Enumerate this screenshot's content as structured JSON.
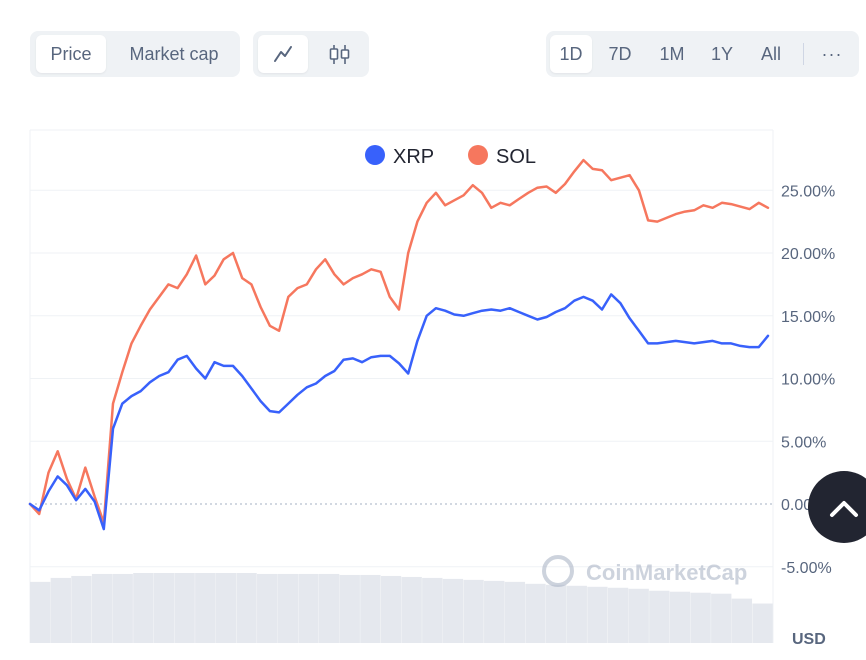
{
  "toolbar": {
    "metric_tabs": [
      {
        "label": "Price",
        "active": true
      },
      {
        "label": "Market cap",
        "active": false
      }
    ],
    "chart_type_icons": [
      {
        "icon": "line-chart-icon",
        "active": true
      },
      {
        "icon": "candlestick-icon",
        "active": false
      }
    ],
    "ranges": [
      {
        "label": "1D",
        "active": true
      },
      {
        "label": "7D",
        "active": false
      },
      {
        "label": "1M",
        "active": false
      },
      {
        "label": "1Y",
        "active": false
      },
      {
        "label": "All",
        "active": false
      }
    ],
    "more_label": "···"
  },
  "watermark": "CoinMarketCap",
  "currency_label": "USD",
  "colors": {
    "xrp": "#3861fb",
    "sol": "#f6775e",
    "volume": "#e5e8ee",
    "grid": "#eff2f5",
    "zero_line": "#a6b0c3",
    "axis_text": "#58667e",
    "scroll_button": "#222531"
  },
  "chart_data": {
    "type": "line",
    "title": "",
    "xlabel": "",
    "ylabel": "",
    "ylim": [
      -5,
      30
    ],
    "yticks": [
      -5,
      0,
      5,
      10,
      15,
      20,
      25
    ],
    "ytick_labels": [
      "-5.00%",
      "0.00%",
      "5.00%",
      "10.00%",
      "15.00%",
      "20.00%",
      "25.00%"
    ],
    "x": [
      0,
      1,
      2,
      3,
      4,
      5,
      6,
      7,
      8,
      9,
      10,
      11,
      12,
      13,
      14,
      15,
      16,
      17,
      18,
      19,
      20,
      21,
      22,
      23,
      24,
      25,
      26,
      27,
      28,
      29,
      30,
      31,
      32,
      33,
      34,
      35,
      36,
      37,
      38,
      39,
      40,
      41,
      42,
      43,
      44,
      45,
      46,
      47,
      48,
      49,
      50,
      51,
      52,
      53,
      54,
      55,
      56,
      57,
      58,
      59,
      60,
      61,
      62,
      63,
      64,
      65,
      66,
      67,
      68,
      69,
      70,
      71,
      72,
      73,
      74,
      75,
      76,
      77,
      78,
      79,
      80
    ],
    "x_unit": "time step (1D, unlabeled)",
    "legend": {
      "position": "top-center"
    },
    "series": [
      {
        "name": "XRP",
        "values": [
          0,
          -0.5,
          1,
          2.2,
          1.5,
          0.3,
          1.2,
          0.2,
          -2,
          6,
          8,
          8.6,
          9,
          9.7,
          10.2,
          10.5,
          11.5,
          11.8,
          10.8,
          10,
          11.3,
          11,
          11,
          10.2,
          9.2,
          8.2,
          7.4,
          7.3,
          8,
          8.7,
          9.3,
          9.6,
          10.2,
          10.6,
          11.5,
          11.6,
          11.3,
          11.7,
          11.8,
          11.8,
          11.2,
          10.4,
          13,
          15,
          15.6,
          15.4,
          15.1,
          15,
          15.2,
          15.4,
          15.5,
          15.4,
          15.6,
          15.3,
          15,
          14.7,
          14.9,
          15.3,
          15.6,
          16.2,
          16.5,
          16.2,
          15.5,
          16.7,
          16,
          14.8,
          13.8,
          12.8,
          12.8,
          12.9,
          13,
          12.9,
          12.8,
          12.9,
          13,
          12.8,
          12.8,
          12.6,
          12.5,
          12.5,
          13.4
        ]
      },
      {
        "name": "SOL",
        "values": [
          0,
          -0.8,
          2.5,
          4.2,
          2,
          0.4,
          2.9,
          0.6,
          -1.5,
          8,
          10.5,
          12.8,
          14.2,
          15.5,
          16.5,
          17.5,
          17.2,
          18.3,
          19.8,
          17.5,
          18.2,
          19.5,
          20,
          18,
          17.5,
          15.7,
          14.2,
          13.8,
          16.5,
          17.2,
          17.5,
          18.7,
          19.5,
          18.3,
          17.5,
          18,
          18.3,
          18.7,
          18.5,
          16.5,
          15.5,
          20,
          22.5,
          24,
          24.8,
          23.8,
          24.2,
          24.6,
          25.4,
          24.8,
          23.6,
          24,
          23.8,
          24.3,
          24.8,
          25.2,
          25.3,
          24.8,
          25.5,
          26.5,
          27.4,
          26.7,
          26.6,
          25.8,
          26,
          26.2,
          25,
          22.6,
          22.5,
          22.8,
          23.1,
          23.3,
          23.4,
          23.8,
          23.6,
          24,
          23.9,
          23.7,
          23.5,
          24,
          23.6
        ]
      }
    ],
    "volume": {
      "values": [
        6.2,
        6.6,
        6.8,
        7.0,
        7.0,
        7.1,
        7.1,
        7.1,
        7.1,
        7.1,
        7.1,
        7.0,
        7.0,
        7.0,
        7.0,
        6.9,
        6.9,
        6.8,
        6.7,
        6.6,
        6.5,
        6.4,
        6.3,
        6.2,
        6.0,
        5.9,
        5.8,
        5.7,
        5.6,
        5.5,
        5.3,
        5.2,
        5.1,
        5.0,
        4.5,
        4.0
      ]
    }
  }
}
